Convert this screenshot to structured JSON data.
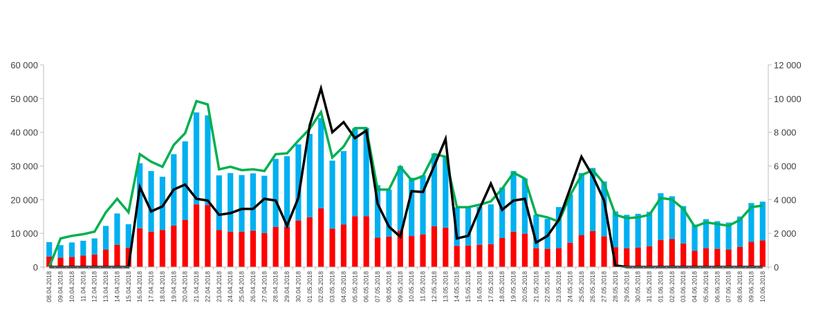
{
  "chart_data": {
    "type": "bar",
    "title": "",
    "xlabel": "",
    "ylabel": "",
    "ylim": [
      0,
      60000
    ],
    "y2lim": [
      0,
      12000
    ],
    "yticks": [
      "0",
      "10 000",
      "20 000",
      "30 000",
      "40 000",
      "50 000",
      "60 000"
    ],
    "y2ticks": [
      "0",
      "2 000",
      "4 000",
      "6 000",
      "8 000",
      "10 000",
      "12 000"
    ],
    "grid": false,
    "legend": "none",
    "categories": [
      "08.04.2018",
      "09.04.2018",
      "10.04.2018",
      "11.04.2018",
      "12.04.2018",
      "13.04.2018",
      "14.04.2018",
      "15.04.2018",
      "16.04.2018",
      "17.04.2018",
      "18.04.2018",
      "19.04.2018",
      "20.04.2018",
      "21.04.2018",
      "22.04.2018",
      "23.04.2018",
      "24.04.2018",
      "25.04.2018",
      "26.04.2018",
      "27.04.2018",
      "28.04.2018",
      "29.04.2018",
      "30.04.2018",
      "01.05.2018",
      "02.05.2018",
      "03.05.2018",
      "04.05.2018",
      "05.05.2018",
      "06.05.2018",
      "07.05.2018",
      "08.05.2018",
      "09.05.2018",
      "10.05.2018",
      "11.05.2018",
      "12.05.2018",
      "13.05.2018",
      "14.05.2018",
      "15.05.2018",
      "16.05.2018",
      "17.05.2018",
      "18.05.2018",
      "19.05.2018",
      "20.05.2018",
      "21.05.2018",
      "22.05.2018",
      "23.05.2018",
      "24.05.2018",
      "25.05.2018",
      "26.05.2018",
      "27.05.2018",
      "28.05.2018",
      "29.05.2018",
      "30.05.2018",
      "31.05.2018",
      "01.06.2018",
      "02.06.2018",
      "03.06.2018",
      "04.06.2018",
      "05.06.2018",
      "06.06.2018",
      "07.06.2018",
      "08.06.2018",
      "09.06.2018",
      "10.06.2018"
    ],
    "series": [
      {
        "name": "red (stacked bottom)",
        "kind": "bar",
        "axis": "left",
        "color": "#FF0000",
        "values": [
          3100,
          2800,
          3000,
          3400,
          3700,
          5200,
          6600,
          5700,
          11500,
          10500,
          11000,
          12300,
          14000,
          18600,
          18400,
          11000,
          10500,
          10500,
          10800,
          10100,
          11900,
          11900,
          13800,
          14800,
          17400,
          11400,
          12600,
          15100,
          15100,
          8700,
          9000,
          10800,
          9200,
          9700,
          12100,
          11700,
          6300,
          6400,
          6600,
          6800,
          8600,
          10500,
          9900,
          5600,
          5400,
          5600,
          7200,
          9500,
          10700,
          9100,
          5900,
          5600,
          5800,
          6200,
          8000,
          8300,
          7000,
          4800,
          5600,
          5400,
          5200,
          6000,
          7500,
          7900
        ]
      },
      {
        "name": "blue (stacked top)",
        "kind": "bar",
        "axis": "left",
        "color": "#00B0F0",
        "values": [
          4300,
          3700,
          4300,
          4400,
          4800,
          7000,
          9300,
          7000,
          19300,
          18000,
          15800,
          21200,
          23300,
          27300,
          26600,
          16200,
          17400,
          16800,
          17000,
          17000,
          20200,
          21000,
          22600,
          24700,
          26800,
          20200,
          21800,
          26100,
          26200,
          15600,
          14000,
          19200,
          17300,
          17500,
          21600,
          20900,
          11400,
          11300,
          11300,
          11800,
          15000,
          18000,
          16400,
          9900,
          8900,
          12200,
          14300,
          18400,
          18700,
          16300,
          10600,
          9900,
          10000,
          10200,
          13900,
          12700,
          11100,
          7800,
          8600,
          8200,
          8000,
          9000,
          11500,
          11500
        ]
      },
      {
        "name": "green line",
        "kind": "line",
        "axis": "right",
        "color": "#00B050",
        "values": [
          0,
          1700,
          1850,
          1950,
          2100,
          3250,
          4050,
          3250,
          6700,
          6250,
          5950,
          7250,
          7950,
          9850,
          9650,
          5800,
          5950,
          5750,
          5800,
          5700,
          6700,
          6750,
          7500,
          8200,
          9200,
          6500,
          7150,
          8250,
          8250,
          4600,
          4600,
          5950,
          5150,
          5400,
          6700,
          6550,
          3550,
          3550,
          3700,
          3900,
          4650,
          5600,
          5250,
          3100,
          2950,
          2700,
          4250,
          5450,
          5750,
          4950,
          3100,
          2900,
          2950,
          3100,
          4100,
          4000,
          3450,
          2400,
          2650,
          2550,
          2450,
          2800,
          3550,
          3650
        ]
      },
      {
        "name": "black line",
        "kind": "line",
        "axis": "right",
        "color": "#000000",
        "values": [
          0,
          0,
          0,
          0,
          0,
          0,
          0,
          0,
          4750,
          3300,
          3600,
          4600,
          4900,
          4050,
          3950,
          3100,
          3200,
          3450,
          3450,
          4050,
          3950,
          2450,
          4100,
          8400,
          10600,
          8000,
          8600,
          7650,
          8100,
          3750,
          2400,
          1800,
          4500,
          4450,
          6000,
          7600,
          1700,
          1850,
          3450,
          4950,
          3400,
          3950,
          4050,
          1450,
          1850,
          2800,
          4650,
          6550,
          5400,
          3950,
          100,
          0,
          0,
          0,
          0,
          0,
          0,
          0,
          0,
          0,
          0,
          0,
          0,
          0
        ]
      }
    ]
  }
}
